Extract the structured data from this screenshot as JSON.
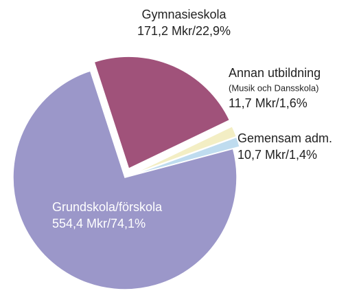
{
  "chart_data": {
    "type": "pie",
    "categories": [
      "Gymnasieskola",
      "Annan utbildning",
      "Gemensam adm.",
      "Grundskola/förskola"
    ],
    "category_notes": [
      null,
      "(Musik och Dansskola)",
      null,
      null
    ],
    "values": [
      171.2,
      11.7,
      10.7,
      554.4
    ],
    "value_labels": [
      "171,2 Mkr/22,9%",
      "11,7 Mkr/1,6%",
      "10,7 Mkr/1,4%",
      "554,4 Mkr/74,1%"
    ],
    "colors": [
      "#a0527a",
      "#f3eec4",
      "#bfdcef",
      "#9b97c9"
    ]
  }
}
